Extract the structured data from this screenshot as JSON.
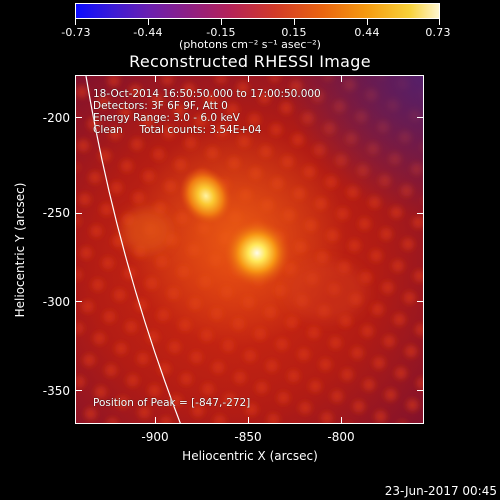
{
  "colorbar": {
    "ticks": [
      "-0.73",
      "-0.44",
      "-0.15",
      "0.15",
      "0.44",
      "0.73"
    ],
    "units": "(photons cm⁻² s⁻¹ asec⁻²)"
  },
  "title": "Reconstructed RHESSI Image",
  "annotations": {
    "line1": "18-Oct-2014 16:50:50.000 to 17:00:50.000",
    "line2": "Detectors: 3F 6F 9F, Att 0",
    "line3": "Energy Range: 3.0 - 6.0 keV",
    "line4": "Clean     Total counts: 3.54E+04",
    "peak": "Position of Peak = [-847,-272]"
  },
  "axes": {
    "xlabel": "Heliocentric X (arcsec)",
    "ylabel": "Heliocentric Y (arcsec)",
    "xticks": [
      "-900",
      "-850",
      "-800"
    ],
    "yticks": [
      "-200",
      "-250",
      "-300",
      "-350"
    ]
  },
  "timestamp": "23-Jun-2017 00:45"
}
